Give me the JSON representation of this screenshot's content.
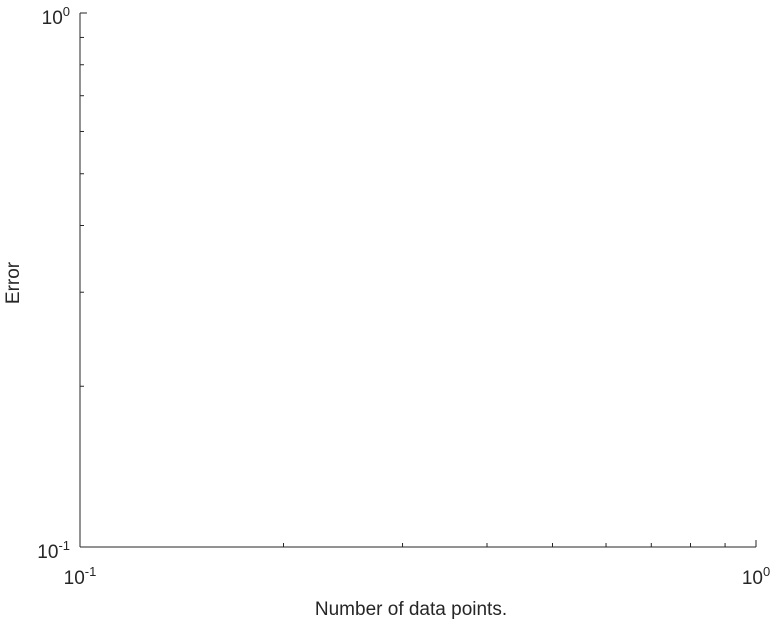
{
  "chart_data": {
    "type": "line",
    "title": "",
    "xlabel": "Number of data points.",
    "ylabel": "Error",
    "xscale": "log",
    "yscale": "log",
    "xlim": [
      0.1,
      1
    ],
    "ylim": [
      0.1,
      1
    ],
    "x_ticks": [
      {
        "value": 0.1,
        "base": "10",
        "exp": "-1"
      },
      {
        "value": 1,
        "base": "10",
        "exp": "0"
      }
    ],
    "y_ticks": [
      {
        "value": 0.1,
        "base": "10",
        "exp": "-1"
      },
      {
        "value": 1,
        "base": "10",
        "exp": "0"
      }
    ],
    "series": [],
    "grid": false,
    "box": false,
    "colors": {
      "axis": "#262626",
      "background": "#ffffff"
    }
  }
}
